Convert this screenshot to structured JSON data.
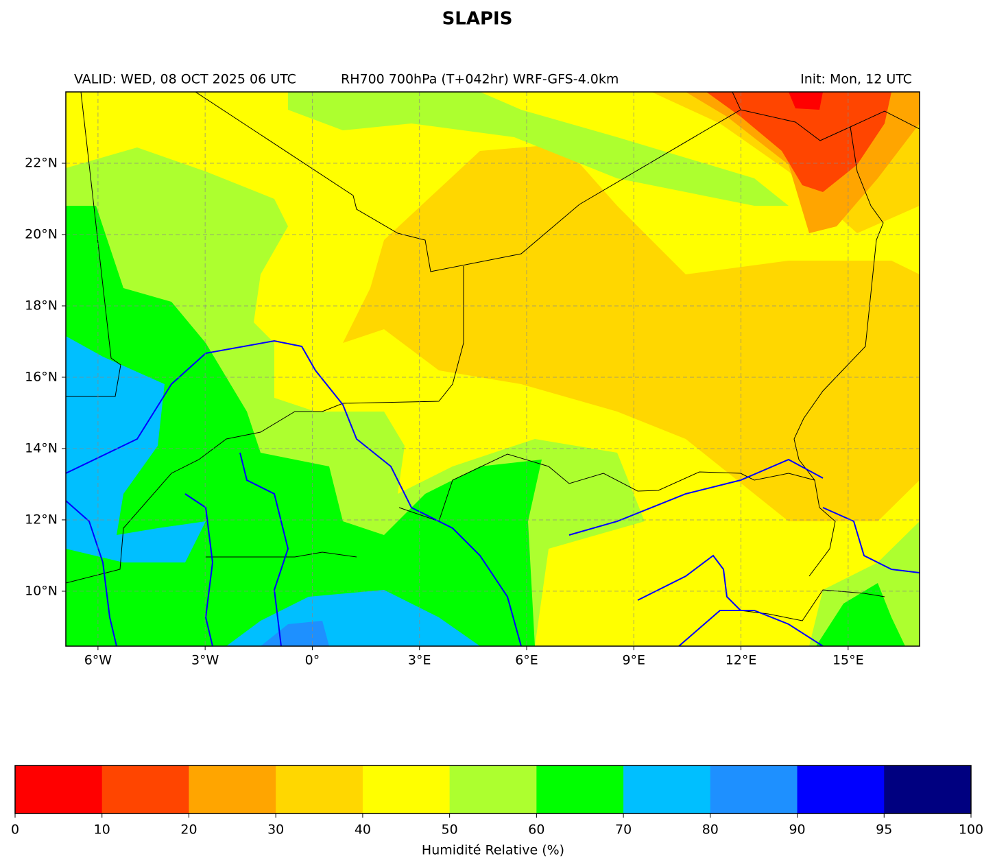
{
  "title": "SLAPIS",
  "header": {
    "valid": "VALID: WED, 08 OCT 2025 06 UTC",
    "field": "RH700 700hPa (T+042hr) WRF-GFS-4.0km",
    "init": "Init: Mon, 12 UTC"
  },
  "map": {
    "xlim": [
      -6.9,
      17.0
    ],
    "ylim": [
      8.46,
      24.0
    ],
    "xticks": [
      {
        "value": -6,
        "label": "6°W"
      },
      {
        "value": -3,
        "label": "3°W"
      },
      {
        "value": 0,
        "label": "0°"
      },
      {
        "value": 3,
        "label": "3°E"
      },
      {
        "value": 6,
        "label": "6°E"
      },
      {
        "value": 9,
        "label": "9°E"
      },
      {
        "value": 12,
        "label": "12°E"
      },
      {
        "value": 15,
        "label": "15°E"
      }
    ],
    "yticks": [
      {
        "value": 10,
        "label": "10°N"
      },
      {
        "value": 12,
        "label": "12°N"
      },
      {
        "value": 14,
        "label": "14°N"
      },
      {
        "value": 16,
        "label": "16°N"
      },
      {
        "value": 18,
        "label": "18°N"
      },
      {
        "value": 20,
        "label": "20°N"
      },
      {
        "value": 22,
        "label": "22°N"
      }
    ],
    "grid": true
  },
  "colorbar": {
    "label": "Humidité Relative (%)",
    "boundaries": [
      0,
      10,
      20,
      30,
      40,
      50,
      60,
      70,
      80,
      90,
      95,
      100
    ],
    "colors": [
      "#ff0000",
      "#ff4500",
      "#ffa500",
      "#ffd700",
      "#ffff00",
      "#adff2f",
      "#00ff00",
      "#00bfff",
      "#1e90ff",
      "#0000ff",
      "#000080"
    ]
  }
}
